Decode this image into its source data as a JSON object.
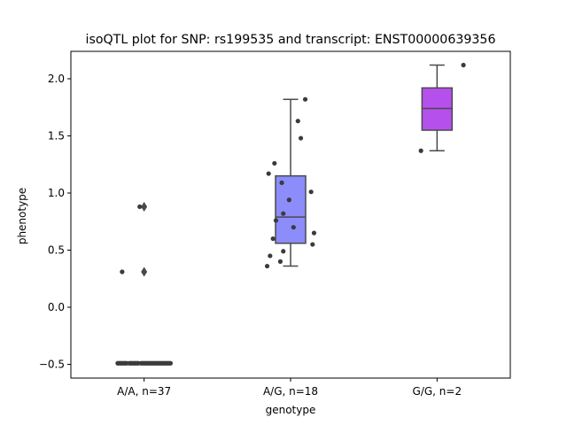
{
  "chart_data": {
    "type": "box",
    "title": "isoQTL plot for SNP: rs199535 and transcript: ENST00000639356",
    "xlabel": "genotype",
    "ylabel": "phenotype",
    "ylim": [
      -0.62,
      2.24
    ],
    "yticks": [
      -0.5,
      0.0,
      0.5,
      1.0,
      1.5,
      2.0
    ],
    "ytick_labels": [
      "−0.5",
      "0.0",
      "0.5",
      "1.0",
      "1.5",
      "2.0"
    ],
    "grid": false,
    "colors": {
      "box_edge": "#4a4a4a",
      "point": "#3b3b3b"
    },
    "categories": [
      "A/A, n=37",
      "A/G, n=18",
      "G/G, n=2"
    ],
    "boxes": [
      {
        "category": "A/A, n=37",
        "color": "#4f4fdc",
        "q1": -0.49,
        "median": -0.49,
        "q3": -0.49,
        "whisker_low": -0.49,
        "whisker_high": -0.49,
        "outliers": [
          0.88,
          0.31
        ]
      },
      {
        "category": "A/G, n=18",
        "color": "#8c8cfa",
        "q1": 0.56,
        "median": 0.79,
        "q3": 1.15,
        "whisker_low": 0.36,
        "whisker_high": 1.82,
        "outliers": []
      },
      {
        "category": "G/G, n=2",
        "color": "#b650ec",
        "q1": 1.55,
        "median": 1.74,
        "q3": 1.92,
        "whisker_low": 1.37,
        "whisker_high": 2.12,
        "outliers": []
      }
    ],
    "points": [
      {
        "category": 0,
        "jitter": -0.18,
        "value": -0.49
      },
      {
        "category": 0,
        "jitter": -0.16,
        "value": -0.49
      },
      {
        "category": 0,
        "jitter": -0.14,
        "value": -0.49
      },
      {
        "category": 0,
        "jitter": -0.12,
        "value": -0.49
      },
      {
        "category": 0,
        "jitter": -0.1,
        "value": -0.49
      },
      {
        "category": 0,
        "jitter": -0.08,
        "value": -0.49
      },
      {
        "category": 0,
        "jitter": -0.06,
        "value": -0.49
      },
      {
        "category": 0,
        "jitter": -0.04,
        "value": -0.49
      },
      {
        "category": 0,
        "jitter": -0.02,
        "value": -0.49
      },
      {
        "category": 0,
        "jitter": 0.0,
        "value": -0.49
      },
      {
        "category": 0,
        "jitter": 0.02,
        "value": -0.49
      },
      {
        "category": 0,
        "jitter": 0.04,
        "value": -0.49
      },
      {
        "category": 0,
        "jitter": 0.06,
        "value": -0.49
      },
      {
        "category": 0,
        "jitter": 0.08,
        "value": -0.49
      },
      {
        "category": 0,
        "jitter": 0.1,
        "value": -0.49
      },
      {
        "category": 0,
        "jitter": 0.12,
        "value": -0.49
      },
      {
        "category": 0,
        "jitter": 0.14,
        "value": -0.49
      },
      {
        "category": 0,
        "jitter": 0.16,
        "value": -0.49
      },
      {
        "category": 0,
        "jitter": 0.18,
        "value": -0.49
      },
      {
        "category": 0,
        "jitter": -0.17,
        "value": -0.49
      },
      {
        "category": 0,
        "jitter": -0.13,
        "value": -0.49
      },
      {
        "category": 0,
        "jitter": -0.09,
        "value": -0.49
      },
      {
        "category": 0,
        "jitter": -0.05,
        "value": -0.49
      },
      {
        "category": 0,
        "jitter": -0.01,
        "value": -0.49
      },
      {
        "category": 0,
        "jitter": 0.03,
        "value": -0.49
      },
      {
        "category": 0,
        "jitter": 0.07,
        "value": -0.49
      },
      {
        "category": 0,
        "jitter": 0.11,
        "value": -0.49
      },
      {
        "category": 0,
        "jitter": 0.15,
        "value": -0.49
      },
      {
        "category": 0,
        "jitter": 0.17,
        "value": -0.49
      },
      {
        "category": 0,
        "jitter": -0.15,
        "value": -0.49
      },
      {
        "category": 0,
        "jitter": -0.07,
        "value": -0.49
      },
      {
        "category": 0,
        "jitter": 0.01,
        "value": -0.49
      },
      {
        "category": 0,
        "jitter": 0.09,
        "value": -0.49
      },
      {
        "category": 0,
        "jitter": 0.13,
        "value": -0.49
      },
      {
        "category": 0,
        "jitter": 0.05,
        "value": -0.49
      },
      {
        "category": 0,
        "jitter": -0.03,
        "value": 0.88
      },
      {
        "category": 0,
        "jitter": -0.15,
        "value": 0.31
      },
      {
        "category": 1,
        "jitter": -0.15,
        "value": 1.17
      },
      {
        "category": 1,
        "jitter": -0.11,
        "value": 1.26
      },
      {
        "category": 1,
        "jitter": -0.06,
        "value": 1.09
      },
      {
        "category": 1,
        "jitter": 0.05,
        "value": 1.63
      },
      {
        "category": 1,
        "jitter": 0.07,
        "value": 1.48
      },
      {
        "category": 1,
        "jitter": 0.1,
        "value": 1.82
      },
      {
        "category": 1,
        "jitter": 0.14,
        "value": 1.01
      },
      {
        "category": 1,
        "jitter": -0.01,
        "value": 0.94
      },
      {
        "category": 1,
        "jitter": -0.05,
        "value": 0.82
      },
      {
        "category": 1,
        "jitter": -0.1,
        "value": 0.76
      },
      {
        "category": 1,
        "jitter": 0.02,
        "value": 0.7
      },
      {
        "category": 1,
        "jitter": 0.16,
        "value": 0.65
      },
      {
        "category": 1,
        "jitter": -0.12,
        "value": 0.6
      },
      {
        "category": 1,
        "jitter": 0.15,
        "value": 0.55
      },
      {
        "category": 1,
        "jitter": -0.05,
        "value": 0.49
      },
      {
        "category": 1,
        "jitter": -0.14,
        "value": 0.45
      },
      {
        "category": 1,
        "jitter": -0.07,
        "value": 0.4
      },
      {
        "category": 1,
        "jitter": -0.16,
        "value": 0.36
      },
      {
        "category": 2,
        "jitter": 0.18,
        "value": 2.12
      },
      {
        "category": 2,
        "jitter": -0.11,
        "value": 1.37
      }
    ]
  }
}
